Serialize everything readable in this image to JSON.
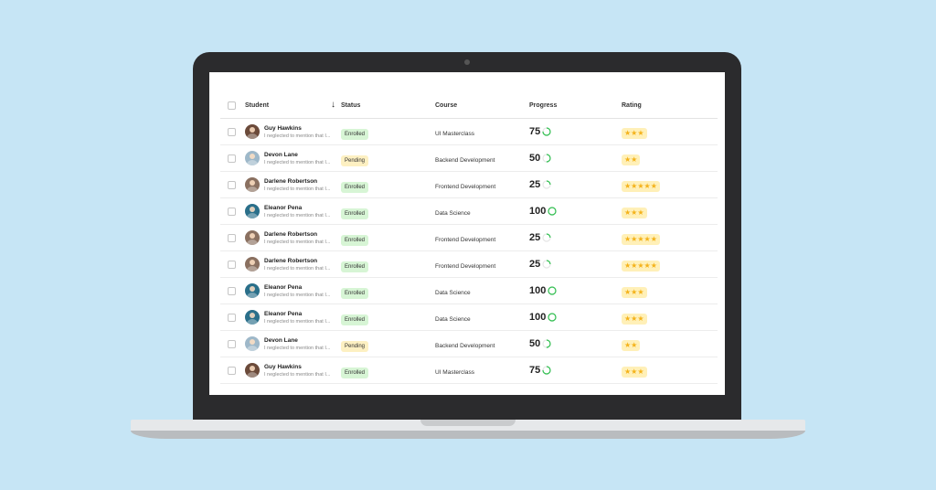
{
  "header": {
    "student": "Student",
    "status": "Status",
    "course": "Course",
    "progress": "Progress",
    "rating": "Rating"
  },
  "icons": {
    "sort": "arrow-down-icon",
    "checkbox": "checkbox-icon",
    "ring": "progress-ring-icon",
    "star": "star-icon"
  },
  "colors": {
    "enrolled": "#d7f5d5",
    "pending": "#fdf0c2",
    "ring": "#2fbf4f",
    "star": "#f4b21a"
  },
  "rows": [
    {
      "name": "Guy Hawkins",
      "note": "I neglected to mention that I...",
      "status": "Enrolled",
      "status_kind": "enrolled",
      "course": "UI Masterclass",
      "progress": "75",
      "rating": 3,
      "avatar_color": "#6b4a3a"
    },
    {
      "name": "Devon Lane",
      "note": "I neglected to mention that I...",
      "status": "Pending",
      "status_kind": "pending",
      "course": "Backend Development",
      "progress": "50",
      "rating": 2,
      "avatar_color": "#9eb8c9"
    },
    {
      "name": "Darlene Robertson",
      "note": "I neglected to mention that I...",
      "status": "Enrolled",
      "status_kind": "enrolled",
      "course": "Frontend Development",
      "progress": "25",
      "rating": 5,
      "avatar_color": "#8a7060"
    },
    {
      "name": "Eleanor Pena",
      "note": "I neglected to mention that I...",
      "status": "Enrolled",
      "status_kind": "enrolled",
      "course": "Data Science",
      "progress": "100",
      "rating": 3,
      "avatar_color": "#2a6f8a"
    },
    {
      "name": "Darlene Robertson",
      "note": "I neglected to mention that I...",
      "status": "Enrolled",
      "status_kind": "enrolled",
      "course": "Frontend Development",
      "progress": "25",
      "rating": 5,
      "avatar_color": "#8a7060"
    },
    {
      "name": "Darlene Robertson",
      "note": "I neglected to mention that I...",
      "status": "Enrolled",
      "status_kind": "enrolled",
      "course": "Frontend Development",
      "progress": "25",
      "rating": 5,
      "avatar_color": "#8a7060"
    },
    {
      "name": "Eleanor Pena",
      "note": "I neglected to mention that I...",
      "status": "Enrolled",
      "status_kind": "enrolled",
      "course": "Data Science",
      "progress": "100",
      "rating": 3,
      "avatar_color": "#2a6f8a"
    },
    {
      "name": "Eleanor Pena",
      "note": "I neglected to mention that I...",
      "status": "Enrolled",
      "status_kind": "enrolled",
      "course": "Data Science",
      "progress": "100",
      "rating": 3,
      "avatar_color": "#2a6f8a"
    },
    {
      "name": "Devon Lane",
      "note": "I neglected to mention that I...",
      "status": "Pending",
      "status_kind": "pending",
      "course": "Backend Development",
      "progress": "50",
      "rating": 2,
      "avatar_color": "#9eb8c9"
    },
    {
      "name": "Guy Hawkins",
      "note": "I neglected to mention that I...",
      "status": "Enrolled",
      "status_kind": "enrolled",
      "course": "UI Masterclass",
      "progress": "75",
      "rating": 3,
      "avatar_color": "#6b4a3a"
    }
  ]
}
